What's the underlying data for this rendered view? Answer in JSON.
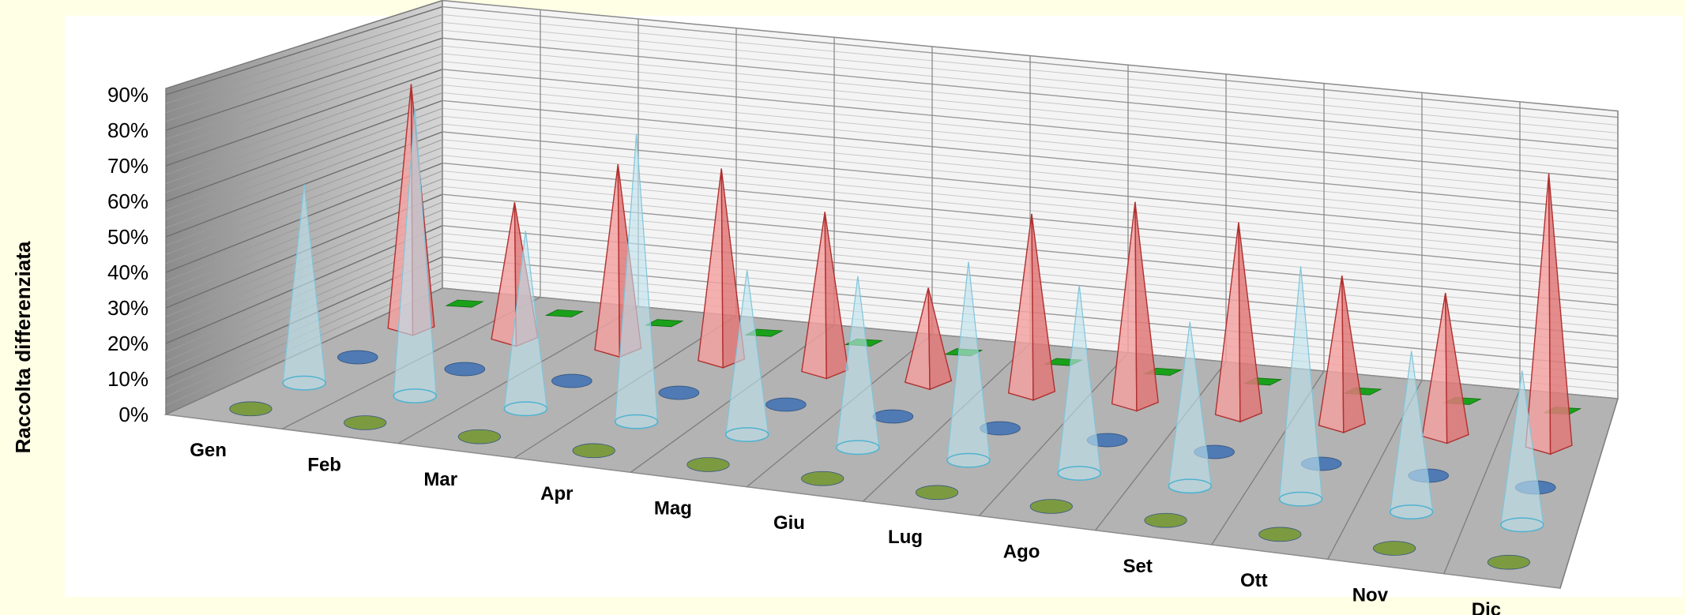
{
  "chart_data": {
    "type": "3d-column",
    "title": "",
    "ylabel": "Raccolta differenziata",
    "ylim": [
      0,
      0.9
    ],
    "y_ticks": [
      "0%",
      "10%",
      "20%",
      "30%",
      "40%",
      "50%",
      "60%",
      "70%",
      "80%",
      "90%"
    ],
    "categories": [
      "Gen",
      "Feb",
      "Mar",
      "Apr",
      "Mag",
      "Giu",
      "Lug",
      "Ago",
      "Set",
      "Ott",
      "Nov",
      "Dic"
    ],
    "series": [
      {
        "shape": "disc",
        "color": "#7a9a3a",
        "values": [
          0,
          0,
          0,
          0,
          0,
          0,
          0,
          0,
          0,
          0,
          0,
          0
        ]
      },
      {
        "shape": "cone",
        "color": "#bfe2ee",
        "values": [
          0.58,
          0.84,
          0.52,
          0.84,
          0.48,
          0.5,
          0.58,
          0.55,
          0.48,
          0.68,
          0.47,
          0.45
        ]
      },
      {
        "shape": "disc",
        "color": "#4a78b4",
        "values": [
          0,
          0,
          0,
          0,
          0,
          0,
          0,
          0,
          0,
          0,
          0,
          0
        ]
      },
      {
        "shape": "pyramid",
        "color": "#f4a0a0",
        "values": [
          0.76,
          0.43,
          0.58,
          0.6,
          0.5,
          0.3,
          0.56,
          0.63,
          0.6,
          0.47,
          0.45,
          0.85
        ]
      },
      {
        "shape": "square",
        "color": "#1aa11a",
        "values": [
          0,
          0,
          0,
          0,
          0,
          0,
          0,
          0,
          0,
          0,
          0,
          0
        ]
      }
    ],
    "grid": true,
    "legend": "none"
  }
}
